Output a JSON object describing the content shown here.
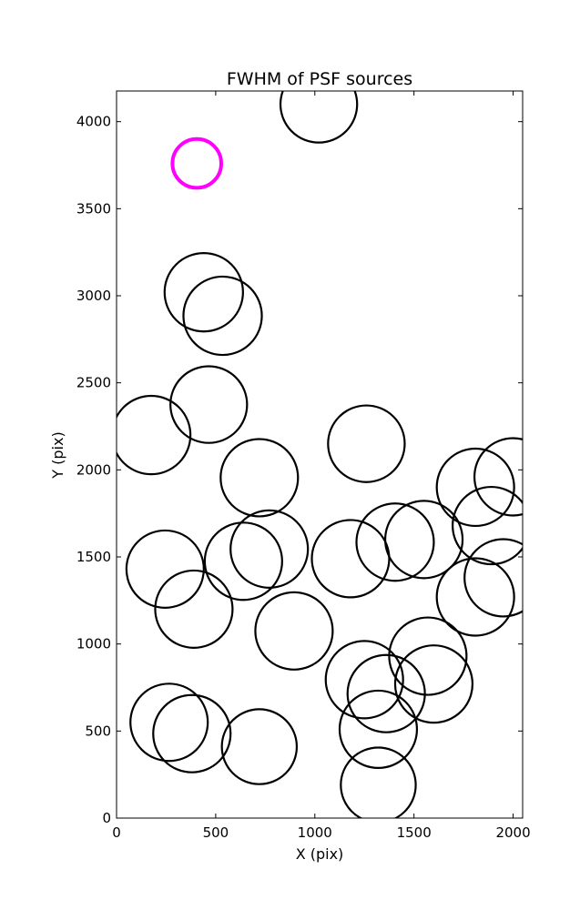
{
  "chart_data": {
    "type": "scatter",
    "title": "FWHM of PSF sources",
    "xlabel": "X (pix)",
    "ylabel": "Y (pix)",
    "xlim": [
      0,
      2048
    ],
    "ylim": [
      0,
      4176
    ],
    "xticks": [
      0,
      500,
      1000,
      1500,
      2000
    ],
    "yticks": [
      0,
      500,
      1000,
      1500,
      2000,
      2500,
      3000,
      3500,
      4000
    ],
    "grid": false,
    "legend": "none",
    "series": [
      {
        "marker": "open-circle",
        "color": "#000000",
        "points": [
          {
            "x": 1020,
            "y": 4100,
            "r": 220
          },
          {
            "x": 440,
            "y": 3020,
            "r": 225
          },
          {
            "x": 535,
            "y": 2885,
            "r": 225
          },
          {
            "x": 465,
            "y": 2375,
            "r": 220
          },
          {
            "x": 175,
            "y": 2200,
            "r": 225
          },
          {
            "x": 1260,
            "y": 2150,
            "r": 220
          },
          {
            "x": 720,
            "y": 1955,
            "r": 222
          },
          {
            "x": 1810,
            "y": 1900,
            "r": 222
          },
          {
            "x": 2000,
            "y": 1960,
            "r": 222
          },
          {
            "x": 1890,
            "y": 1680,
            "r": 222
          },
          {
            "x": 1550,
            "y": 1600,
            "r": 222
          },
          {
            "x": 1405,
            "y": 1585,
            "r": 222
          },
          {
            "x": 1180,
            "y": 1490,
            "r": 222
          },
          {
            "x": 770,
            "y": 1545,
            "r": 222
          },
          {
            "x": 640,
            "y": 1475,
            "r": 222
          },
          {
            "x": 245,
            "y": 1430,
            "r": 222
          },
          {
            "x": 390,
            "y": 1200,
            "r": 222
          },
          {
            "x": 1950,
            "y": 1380,
            "r": 222
          },
          {
            "x": 1810,
            "y": 1270,
            "r": 222
          },
          {
            "x": 895,
            "y": 1075,
            "r": 222
          },
          {
            "x": 1570,
            "y": 930,
            "r": 222
          },
          {
            "x": 1600,
            "y": 770,
            "r": 222
          },
          {
            "x": 1250,
            "y": 795,
            "r": 222
          },
          {
            "x": 1360,
            "y": 715,
            "r": 222
          },
          {
            "x": 1320,
            "y": 510,
            "r": 222
          },
          {
            "x": 1320,
            "y": 190,
            "r": 215
          },
          {
            "x": 265,
            "y": 550,
            "r": 222
          },
          {
            "x": 380,
            "y": 485,
            "r": 222
          },
          {
            "x": 720,
            "y": 410,
            "r": 215
          }
        ]
      },
      {
        "marker": "open-circle",
        "color": "#ff00ff",
        "points": [
          {
            "x": 405,
            "y": 3760,
            "r": 140
          }
        ]
      }
    ]
  }
}
